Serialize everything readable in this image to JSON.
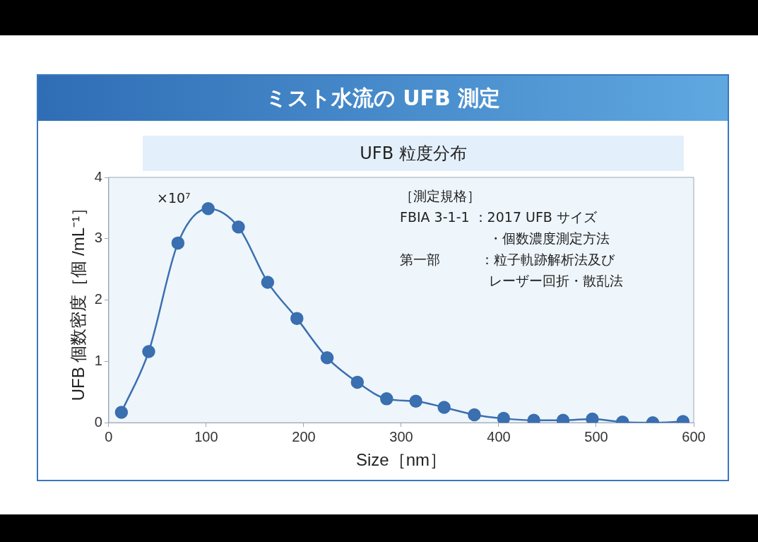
{
  "chart_data": {
    "type": "line",
    "title": "ミスト水流の UFB 測定",
    "subtitle": "UFB 粒度分布",
    "xlabel": "Size［nm］",
    "ylabel": "UFB 個数密度［個 /mL⁻¹］",
    "x": [
      13,
      41,
      71,
      102,
      133,
      163,
      193,
      224,
      255,
      285,
      315,
      344,
      375,
      405,
      436,
      466,
      496,
      527,
      558,
      589
    ],
    "series": [
      {
        "color": "#3a6fb0",
        "values": [
          0.17,
          1.16,
          2.93,
          3.49,
          3.19,
          2.29,
          1.7,
          1.06,
          0.66,
          0.39,
          0.35,
          0.25,
          0.13,
          0.07,
          0.04,
          0.04,
          0.06,
          0.01,
          0,
          0.02
        ]
      }
    ],
    "xlim": [
      0,
      600
    ],
    "xticks": [
      0,
      100,
      200,
      300,
      400,
      500,
      600
    ],
    "ylim": [
      0,
      4
    ],
    "yticks": [
      0,
      1,
      2,
      3,
      4
    ],
    "grid": false,
    "legend": false,
    "marker": "circle",
    "line_style": "solid",
    "annotations": [
      "×10⁷",
      "［測定規格］",
      "FBIA 3-1-1 ：2017 UFB サイズ",
      "　　　　　　  ・個数濃度測定方法",
      "第一部　　　：粒子軌跡解析法及び",
      "　　　　　　  レーザー回折・散乱法"
    ]
  }
}
